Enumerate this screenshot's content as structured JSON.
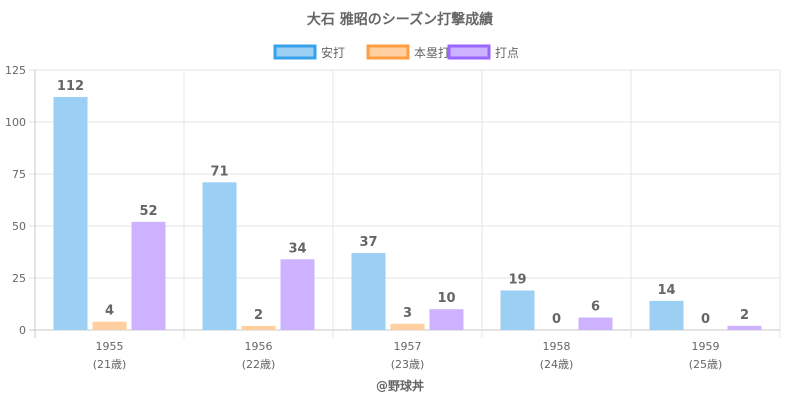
{
  "colors": {
    "hits_fill": "#9BCFF3",
    "hits_border": "#36A2EB",
    "hr_fill": "#FFCF9F",
    "hr_border": "#FF9F40",
    "rbi_fill": "#CCB2FF",
    "rbi_border": "#9966FF",
    "grid": "#e5e5e5",
    "axis": "#c8c8c8",
    "text": "#666666"
  },
  "chart_data": {
    "type": "bar",
    "title": "大石 雅昭のシーズン打撃成績",
    "categories": [
      "1955",
      "1956",
      "1957",
      "1958",
      "1959"
    ],
    "category_sublabels": [
      "(21歳)",
      "(22歳)",
      "(23歳)",
      "(24歳)",
      "(25歳)"
    ],
    "series": [
      {
        "name": "安打",
        "values": [
          112,
          71,
          37,
          19,
          14
        ],
        "data_labels": [
          "112",
          "71",
          "37",
          "19",
          "14"
        ]
      },
      {
        "name": "本塁打",
        "values": [
          4,
          2,
          3,
          0,
          0
        ],
        "data_labels": [
          "4",
          "2",
          "3",
          "0",
          "0"
        ]
      },
      {
        "name": "打点",
        "values": [
          52,
          34,
          10,
          6,
          2
        ],
        "data_labels": [
          "52",
          "34",
          "10",
          "6",
          "2"
        ]
      }
    ],
    "ylim": [
      0,
      125
    ],
    "yticks": [
      "0",
      "25",
      "50",
      "75",
      "100",
      "125"
    ],
    "xlabel": "",
    "ylabel": "",
    "grid": true,
    "legend_position": "top"
  },
  "footer_text": "@野球丼"
}
